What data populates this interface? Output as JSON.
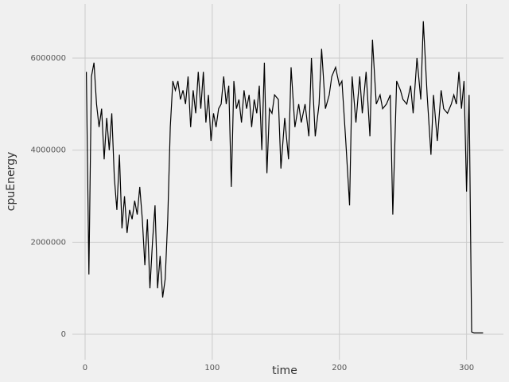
{
  "chart_data": {
    "type": "line",
    "xlabel": "time",
    "ylabel": "cpuEnergy",
    "x": [
      1,
      3,
      5,
      7,
      9,
      11,
      13,
      15,
      17,
      19,
      21,
      23,
      25,
      27,
      29,
      31,
      33,
      35,
      37,
      39,
      41,
      43,
      45,
      47,
      49,
      51,
      53,
      55,
      57,
      59,
      61,
      63,
      65,
      67,
      69,
      71,
      73,
      75,
      77,
      79,
      81,
      83,
      85,
      87,
      89,
      91,
      93,
      95,
      97,
      99,
      101,
      103,
      105,
      107,
      109,
      111,
      113,
      115,
      117,
      119,
      121,
      123,
      125,
      127,
      129,
      131,
      133,
      135,
      137,
      139,
      141,
      143,
      145,
      147,
      149,
      152,
      154,
      157,
      160,
      162,
      165,
      168,
      170,
      173,
      176,
      178,
      181,
      184,
      186,
      189,
      192,
      194,
      197,
      200,
      202,
      205,
      208,
      210,
      213,
      216,
      218,
      221,
      224,
      226,
      229,
      232,
      234,
      237,
      240,
      242,
      245,
      248,
      250,
      253,
      256,
      258,
      261,
      264,
      266,
      269,
      272,
      274,
      277,
      280,
      282,
      285,
      288,
      290,
      292,
      294,
      296,
      298,
      300,
      302,
      304,
      306,
      309,
      313
    ],
    "series": [
      {
        "color": "#000000",
        "values": [
          5700000,
          1300000,
          5600000,
          5900000,
          5000000,
          4500000,
          4900000,
          3800000,
          4700000,
          4000000,
          4800000,
          3400000,
          2700000,
          3900000,
          2300000,
          3000000,
          2200000,
          2700000,
          2500000,
          2900000,
          2600000,
          3200000,
          2500000,
          1500000,
          2500000,
          1000000,
          2000000,
          2800000,
          1000000,
          1700000,
          800000,
          1200000,
          2500000,
          4500000,
          5500000,
          5300000,
          5500000,
          5100000,
          5300000,
          5000000,
          5600000,
          4500000,
          5300000,
          4800000,
          5700000,
          4900000,
          5700000,
          4600000,
          5200000,
          4200000,
          4800000,
          4500000,
          4900000,
          5000000,
          5600000,
          5000000,
          5400000,
          3200000,
          5500000,
          4900000,
          5100000,
          4600000,
          5300000,
          4900000,
          5200000,
          4500000,
          5100000,
          4800000,
          5400000,
          4000000,
          5900000,
          3500000,
          4900000,
          4800000,
          5200000,
          5100000,
          3600000,
          4700000,
          3800000,
          5800000,
          4500000,
          5000000,
          4600000,
          5000000,
          4300000,
          6000000,
          4300000,
          5000000,
          6200000,
          4900000,
          5200000,
          5600000,
          5800000,
          5400000,
          5500000,
          4200000,
          2800000,
          5600000,
          4600000,
          5600000,
          4800000,
          5700000,
          4300000,
          6400000,
          5000000,
          5200000,
          4900000,
          5000000,
          5200000,
          2600000,
          5500000,
          5300000,
          5100000,
          5000000,
          5400000,
          4800000,
          6000000,
          5100000,
          6800000,
          5200000,
          3900000,
          5200000,
          4200000,
          5300000,
          4900000,
          4800000,
          5000000,
          5200000,
          5000000,
          5700000,
          4900000,
          5500000,
          3100000,
          5200000,
          50000,
          30000,
          30000,
          30000
        ]
      }
    ],
    "xlim": [
      -10,
      329
    ],
    "ylim": [
      -553000,
      7175000
    ],
    "xticks": [
      0,
      100,
      200,
      300
    ],
    "yticks": [
      0,
      2000000,
      4000000,
      6000000
    ],
    "grid": true
  }
}
